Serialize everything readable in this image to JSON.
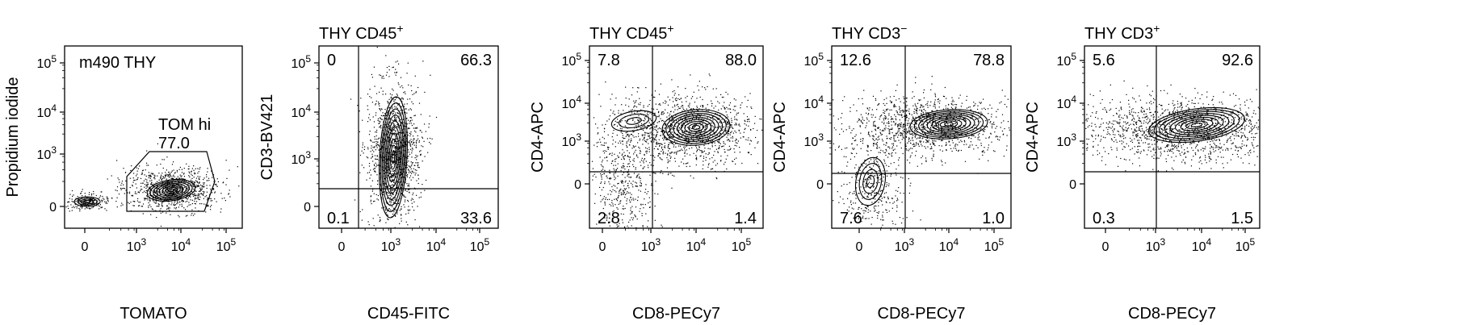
{
  "chart_data": [
    {
      "type": "scatter",
      "subtype": "flow-cytometry-contour",
      "title": "",
      "plot_title": "m490 THY",
      "xlabel": "TOMATO",
      "ylabel": "Propidium iodide",
      "x_ticks": [
        "0",
        "10^3",
        "10^4",
        "10^5"
      ],
      "y_ticks": [
        "0",
        "10^3",
        "10^4",
        "10^5"
      ],
      "gate": {
        "name": "TOM hi",
        "value": "77.0"
      },
      "quadrants": []
    },
    {
      "type": "scatter",
      "subtype": "flow-cytometry-contour",
      "title": "THY CD45+",
      "xlabel": "CD45-FITC",
      "ylabel": "CD3-BV421",
      "x_ticks": [
        "0",
        "10^3",
        "10^4",
        "10^5"
      ],
      "y_ticks": [
        "0",
        "10^3",
        "10^4",
        "10^5"
      ],
      "quadrants": [
        {
          "position": "top-left",
          "value": "0"
        },
        {
          "position": "top-right",
          "value": "66.3"
        },
        {
          "position": "bottom-left",
          "value": "0.1"
        },
        {
          "position": "bottom-right",
          "value": "33.6"
        }
      ]
    },
    {
      "type": "scatter",
      "subtype": "flow-cytometry-contour",
      "title": "THY CD45+",
      "xlabel": "CD8-PECy7",
      "ylabel": "CD4-APC",
      "x_ticks": [
        "0",
        "10^3",
        "10^4",
        "10^5"
      ],
      "y_ticks": [
        "0",
        "10^3",
        "10^4",
        "10^5"
      ],
      "quadrants": [
        {
          "position": "top-left",
          "value": "7.8"
        },
        {
          "position": "top-right",
          "value": "88.0"
        },
        {
          "position": "bottom-left",
          "value": "2.8"
        },
        {
          "position": "bottom-right",
          "value": "1.4"
        }
      ]
    },
    {
      "type": "scatter",
      "subtype": "flow-cytometry-contour",
      "title": "THY CD3−",
      "xlabel": "CD8-PECy7",
      "ylabel": "CD4-APC",
      "x_ticks": [
        "0",
        "10^3",
        "10^4",
        "10^5"
      ],
      "y_ticks": [
        "0",
        "10^3",
        "10^4",
        "10^5"
      ],
      "quadrants": [
        {
          "position": "top-left",
          "value": "12.6"
        },
        {
          "position": "top-right",
          "value": "78.8"
        },
        {
          "position": "bottom-left",
          "value": "7.6"
        },
        {
          "position": "bottom-right",
          "value": "1.0"
        }
      ]
    },
    {
      "type": "scatter",
      "subtype": "flow-cytometry-contour",
      "title": "THY CD3+",
      "xlabel": "CD8-PECy7",
      "ylabel": "CD4-APC",
      "x_ticks": [
        "0",
        "10^3",
        "10^4",
        "10^5"
      ],
      "y_ticks": [
        "0",
        "10^3",
        "10^4",
        "10^5"
      ],
      "quadrants": [
        {
          "position": "top-left",
          "value": "5.6"
        },
        {
          "position": "top-right",
          "value": "92.6"
        },
        {
          "position": "bottom-left",
          "value": "0.3"
        },
        {
          "position": "bottom-right",
          "value": "1.5"
        }
      ]
    }
  ]
}
